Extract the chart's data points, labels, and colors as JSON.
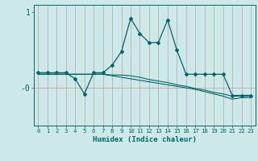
{
  "xlabel": "Humidex (Indice chaleur)",
  "x": [
    0,
    1,
    2,
    3,
    4,
    5,
    6,
    7,
    8,
    9,
    10,
    11,
    12,
    13,
    14,
    15,
    16,
    17,
    18,
    19,
    20,
    21,
    22,
    23
  ],
  "line1": [
    0.2,
    0.2,
    0.2,
    0.2,
    0.12,
    -0.08,
    0.2,
    0.2,
    0.3,
    0.48,
    0.92,
    0.72,
    0.6,
    0.6,
    0.9,
    0.5,
    0.18,
    0.18,
    0.18,
    0.18,
    0.18,
    -0.1,
    -0.1,
    -0.1
  ],
  "line2": [
    0.18,
    0.18,
    0.18,
    0.18,
    0.18,
    0.18,
    0.18,
    0.18,
    0.17,
    0.17,
    0.16,
    0.14,
    0.11,
    0.09,
    0.07,
    0.04,
    0.02,
    -0.01,
    -0.03,
    -0.06,
    -0.08,
    -0.11,
    -0.11,
    -0.11
  ],
  "line3": [
    0.18,
    0.18,
    0.18,
    0.18,
    0.18,
    0.18,
    0.18,
    0.18,
    0.16,
    0.14,
    0.12,
    0.1,
    0.08,
    0.06,
    0.04,
    0.02,
    0.0,
    -0.02,
    -0.05,
    -0.08,
    -0.11,
    -0.15,
    -0.13,
    -0.13
  ],
  "bg_color": "#cce8e8",
  "line_color": "#006666",
  "grid_color": "#c8a8a8",
  "ylim": [
    -0.5,
    1.1
  ],
  "xlim": [
    -0.5,
    23.5
  ],
  "ytick_vals": [
    1.0,
    0.0
  ],
  "ytick_labels": [
    "1",
    "-0"
  ]
}
